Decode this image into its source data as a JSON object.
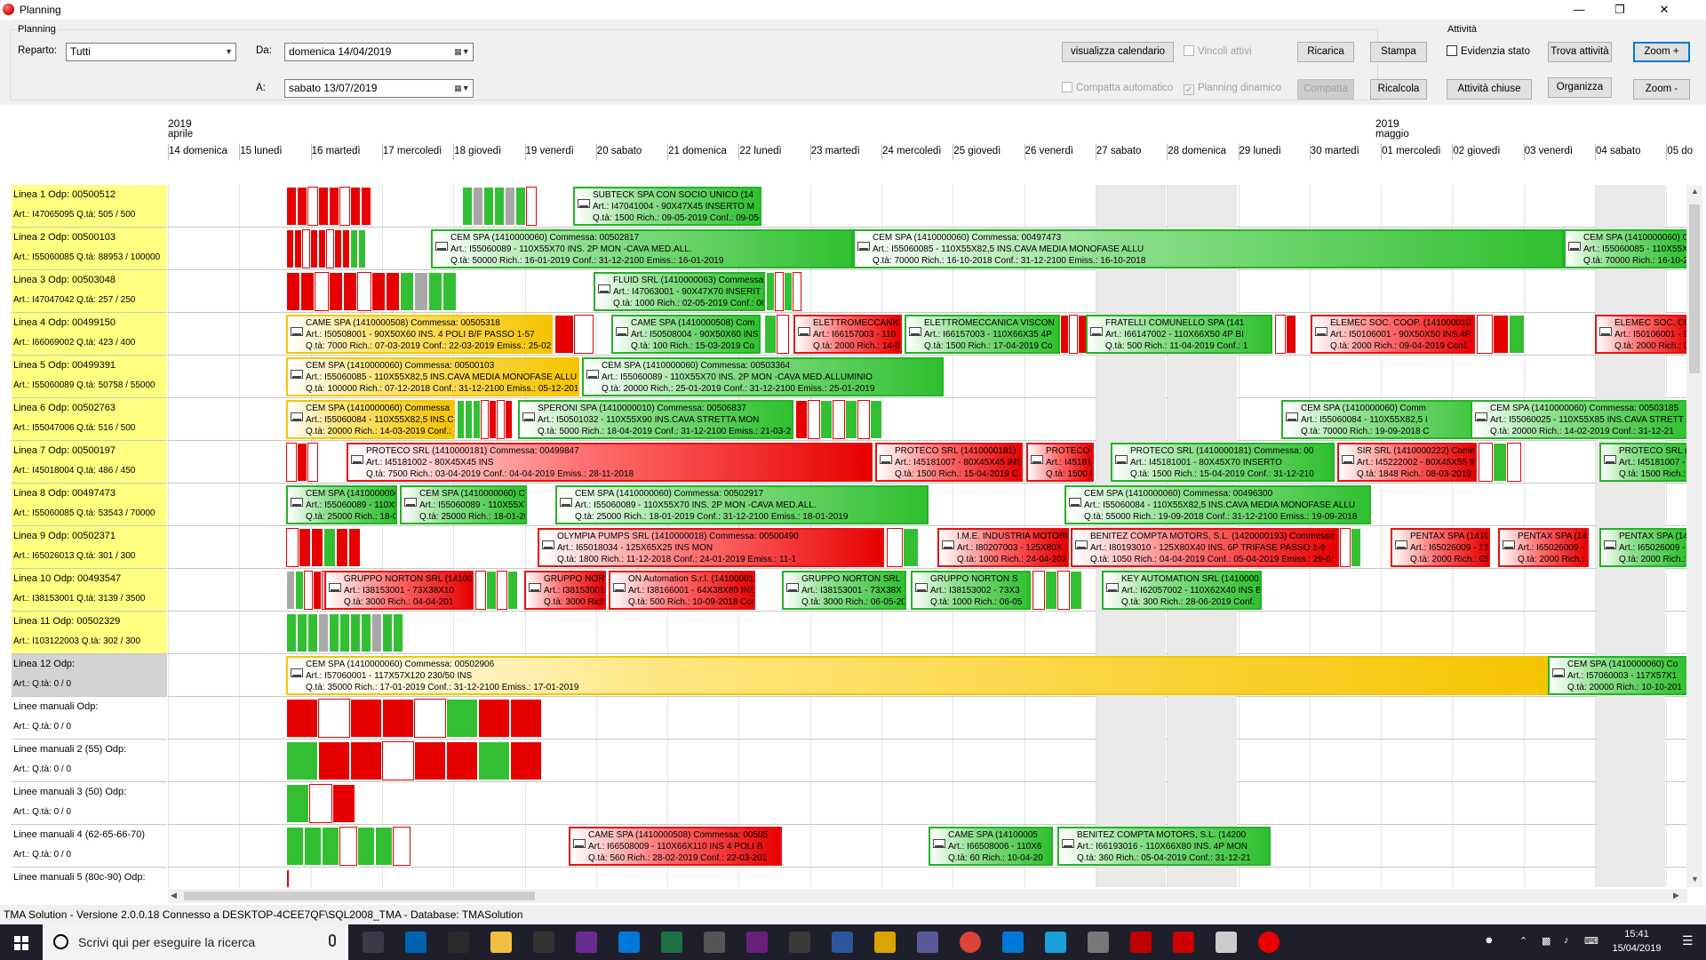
{
  "window": {
    "title": "Planning",
    "min": "—",
    "max": "❐",
    "close": "✕"
  },
  "filters": {
    "group_title": "Planning",
    "reparto_label": "Reparto:",
    "reparto_value": "Tutti",
    "da_label": "Da:",
    "da_value": "domenica 14/04/2019",
    "a_label": "A:",
    "a_value": "sabato    13/07/2019"
  },
  "toolbar": {
    "visualizza_calendario": "visualizza calendario",
    "vincoli_attivi": "Vincoli attivi",
    "compatta_automatico": "Compatta automatico",
    "planning_dinamico": "Planning dinamico",
    "ricarica": "Ricarica",
    "stampa": "Stampa",
    "compatta": "Compatta",
    "ricalcola": "Ricalcola",
    "attivita_title": "Attività",
    "evidenzia_stato": "Evidenzia stato",
    "trova_attivita": "Trova attività",
    "attivita_chiuse": "Attività chiuse",
    "organizza": "Organizza",
    "zoom_plus": "Zoom +",
    "zoom_minus": "Zoom -"
  },
  "timeline": {
    "year_1": "2019",
    "month_1": "aprile",
    "year_2": "2019",
    "month_2": "maggio",
    "days": [
      "14 domenica",
      "15 lunedì",
      "16 martedì",
      "17 mercoledì",
      "18 giovedì",
      "19 venerdì",
      "20 sabato",
      "21 domenica",
      "22 lunedì",
      "23 martedì",
      "24 mercoledì",
      "25 giovedì",
      "26 venerdì",
      "27 sabato",
      "28 domenica",
      "29 lunedì",
      "30 martedì",
      "01 mercoledì",
      "02 giovedì",
      "03 venerdì",
      "04 sabato",
      "05 do"
    ]
  },
  "lines": [
    {
      "name": "Linea 1    Odp: 00500512",
      "info": "Art.: I47065095 Q.tà: 505 / 500"
    },
    {
      "name": "Linea 2    Odp: 00500103",
      "info": "Art.: I55060085 Q.tà: 88953 / 100000"
    },
    {
      "name": "Linea 3    Odp: 00503048",
      "info": "Art.: I47047042 Q.tà: 257 / 250"
    },
    {
      "name": "Linea 4    Odp: 00499150",
      "info": "Art.: I66069002 Q.tà: 423 / 400"
    },
    {
      "name": "Linea 5    Odp: 00499391",
      "info": "Art.: I55060089 Q.tà: 50758 / 55000"
    },
    {
      "name": "Linea 6    Odp: 00502763",
      "info": "Art.: I55047006 Q.tà: 516 / 500"
    },
    {
      "name": "Linea 7    Odp: 00500197",
      "info": "Art.: I45018004 Q.tà: 486 / 450"
    },
    {
      "name": "Linea 8    Odp: 00497473",
      "info": "Art.: I55060085 Q.tà: 53543 / 70000"
    },
    {
      "name": "Linea 9    Odp: 00502371",
      "info": "Art.: I65026013 Q.tà: 301 / 300"
    },
    {
      "name": "Linea 10    Odp: 00493547",
      "info": "Art.: I38153001 Q.tà: 3139 / 3500"
    },
    {
      "name": "Linea 11    Odp: 00502329",
      "info": "Art.: I103122003 Q.tà: 302 / 300"
    },
    {
      "name": "Linea 12    Odp:",
      "info": "Art.:  Q.tà: 0 / 0"
    },
    {
      "name": "Linee manuali    Odp:",
      "info": "Art.:  Q.tà: 0 / 0"
    },
    {
      "name": "Linee manuali 2 (55)    Odp:",
      "info": "Art.:  Q.tà: 0 / 0"
    },
    {
      "name": "Linee manuali 3 (50)    Odp:",
      "info": "Art.:  Q.tà: 0 / 0"
    },
    {
      "name": "Linee manuali 4 (62-65-66-70)",
      "info": "Art.:  Q.tà: 0 / 0"
    },
    {
      "name": "Linee manuali 5 (80c-90)    Odp:",
      "info": ""
    }
  ],
  "jobs": {
    "l1a": "SUBTECK SPA CON SOCIO UNICO  (14",
    "l1b": "Art.: I47041004 - 90X47X45 INSERTO M",
    "l1c": "Q.tà: 1500 Rich.: 09-05-2019 Conf.: 09-05-",
    "l2a": "CEM SPA  (1410000060) Commessa: 00502817",
    "l2b": "Art.: I55060089 - 110X55X70 INS. 2P MON -CAVA MED.ALL.",
    "l2c": "Q.tà: 50000 Rich.: 16-01-2019 Conf.: 31-12-2100 Emiss.: 16-01-2019",
    "l2d": "CEM SPA  (1410000060) Commessa: 00497473",
    "l2e": "Art.: I55060085 - 110X55X82,5 INS.CAVA MEDIA MONOFASE ALLU",
    "l2f": "Q.tà: 70000 Rich.: 16-10-2018 Conf.: 31-12-2100 Emiss.: 16-10-2018",
    "l3a": "FLUID SRL  (1410000063) Commessa",
    "l3b": "Art.: I47063001 - 90X47X70 INSERIT",
    "l3c": "Q.tà: 1000 Rich.: 02-05-2019 Conf.: 06",
    "l4a": "CAME SPA  (1410000508) Commessa: 00505318",
    "l4b": "Art.: I50508001 - 90X50X60 INS. 4 POLI B/F PASSO 1-57",
    "l4c": "Q.tà: 7000 Rich.: 07-03-2019 Conf.: 22-03-2019 Emiss.: 25-02",
    "l4d": "CAME SPA  (1410000508) Com",
    "l4e": "Art.: I50508004 - 90X50X60 INS",
    "l4f": "Q.tà: 100 Rich.: 15-03-2019 Co",
    "l4g": "ELETTROMECCANIC",
    "l4h": "Art.: I66157003 - 110",
    "l4i": "Q.tà: 2000 Rich.: 14-0",
    "l4j": "ELETTROMECCANICA VISCON",
    "l4k": "Art.: I66157003 - 110X66X35 4P",
    "l4l": "Q.tà: 1500 Rich.: 17-04-2019 Co",
    "l4m": "FRATELLI COMUNELLO SPA  (141",
    "l4n": "Art.: I66147002 - 110X66X50 4P BI",
    "l4o": "Q.tà: 500 Rich.: 11-04-2019 Conf.: 1",
    "l4p": "ELEMEC SOC. COOP.  (141000010",
    "l4q": "Art.: I50106001 - 90X50X50 INS.4P",
    "l4r": "Q.tà: 2000 Rich.: 09-04-2019 Conf.",
    "l5a": "CEM SPA  (1410000060) Commessa: 00500103",
    "l5b": "Art.: I55060085 - 110X55X82,5 INS.CAVA MEDIA MONOFASE ALLU",
    "l5c": "Q.tà: 100000 Rich.: 07-12-2018 Conf.: 31-12-2100 Emiss.: 05-12-201",
    "l5d": "CEM SPA  (1410000060) Commessa: 00503364",
    "l5e": "Art.: I55060089 - 110X55X70 INS. 2P MON -CAVA MED.ALLUMINIO",
    "l5f": "Q.tà: 20000 Rich.: 25-01-2019 Conf.: 31-12-2100 Emiss.: 25-01-2019",
    "l6a": "CEM SPA  (1410000060) Commessa",
    "l6b": "Art.: I55060084 - 110X55X82,5 INS.C",
    "l6c": "Q.tà: 20000 Rich.: 14-03-2019 Conf.:",
    "l6d": "SPERONI SPA  (1410000010) Commessa: 00506837",
    "l6e": "Art.: I50501032 - 110X55X90 INS.CAVA STRETTA MON",
    "l6f": "Q.tà: 5000 Rich.: 18-04-2019 Conf.: 31-12-2100 Emiss.: 21-03-2",
    "l6g": "CEM SPA  (1410000060) Comm",
    "l6h": "Art.: I55060084 - 110X55X82,5 I",
    "l6i": "Q.tà: 70000 Rich.: 19-09-2018 C",
    "l6j": "CEM SPA  (1410000060) Commessa: 00503185",
    "l6k": "Art.: I55060025 - 110X55X85 INS.CAVA STRETT",
    "l6l": "Q.tà: 20000 Rich.: 14-02-2019 Conf.: 31-12-21",
    "l7a": "PROTECO SRL  (1410000181) Commessa: 00499847",
    "l7b": "Art.: I45181002 - 80X45X45 INS",
    "l7c": "Q.tà: 7500 Rich.: 03-04-2019 Conf.: 04-04-2019 Emiss.: 28-11-2018",
    "l7d": "PROTECO SRL  (1410000181)",
    "l7e": "Art.: I45181007 - 80X45X45 INS",
    "l7f": "Q.tà: 1500 Rich.: 15-04-2019 C",
    "l7g": "PROTECO SRL  (1410000181) Commessa: 00",
    "l7h": "Art.: I45181001 - 80X45X70 INSERTO",
    "l7i": "Q.tà: 1500 Rich.: 15-04-2019 Conf.: 31-12-210",
    "l7j": "SIR SRL  (1410000222) Commessa",
    "l7k": "Art.: I45222002 - 80X45X55 INS 4P",
    "l7l": "Q.tà: 1848 Rich.: 08-03-2019 Conf.",
    "l8a": "CEM SPA  (1410000060) Commessa: 00502917",
    "l8b": "Art.: I55060089 - 110X55X70 INS. 2P MON -CAVA MED.ALL.",
    "l8c": "Q.tà: 25000 Rich.: 18-01-2019 Conf.: 31-12-2100 Emiss.: 18-01-2019",
    "l8d": "CEM SPA  (1410000060) Commessa: 00496300",
    "l8e": "Art.: I55060084 - 110X55X82,5 INS.CAVA MEDIA MONOFASE ALLU",
    "l8f": "Q.tà: 55000 Rich.: 19-09-2018 Conf.: 31-12-2100 Emiss.: 19-09-2018",
    "l9a": "OLYMPIA PUMPS SRL  (1410000018) Commessa: 00500490",
    "l9b": "Art.: I65018034 - 125X65X25 INS MON",
    "l9c": "Q.tà: 1800 Rich.: 11-12-2018 Conf.: 24-01-2019 Emiss.: 11-1",
    "l9d": "I.M.E. INDUSTRIA MOTORI",
    "l9e": "Art.: I80207003 - 125X80X",
    "l9f": "Q.tà: 1000 Rich.: 24-04-201",
    "l9g": "BENITEZ COMPTA MOTORS, S.L.  (1420000193) Commessa",
    "l9h": "Art.: I80193010 - 125X80X40 INS. 6P TRIFASE PASSO 1-6",
    "l9i": "Q.tà: 1050 Rich.: 04-04-2019 Conf.: 05-04-2019 Emiss.: 29-0",
    "l9j": "PENTAX SPA  (1410000002",
    "l9k": "Art.: I65026009 - 125X65X1",
    "l9l": "Q.tà: 2000 Rich.: 05-04-2019",
    "l10a": "GRUPPO NORTON SRL  (14100",
    "l10b": "Art.: I38153001 - 73X38X10",
    "l10c": "Q.tà: 3000 Rich.: 04-04-201",
    "l10d": "ON Automation S.r.l.  (14100001",
    "l10e": "Art.: I38166001 - 64X38X80 INS",
    "l10f": "Q.tà: 500 Rich.: 10-09-2018 Con",
    "l10g": "GRUPPO NORTON SRL",
    "l10h": "Art.: I38153001 - 73X38X",
    "l10i": "Q.tà: 3000 Rich.: 06-05-20",
    "l10j": "GRUPPO NORTON S",
    "l10k": "Art.: I38153002 - 73X3",
    "l10l": "Q.tà: 1000 Rich.: 06-05",
    "l10m": "KEY AUTOMATION SRL  (1410000",
    "l10n": "Art.: I62057002 - 110X62X40 INS B",
    "l10o": "Q.tà: 300 Rich.: 28-06-2019 Conf.",
    "l12a": "CEM SPA  (1410000060) Commessa: 00502906",
    "l12b": "Art.: I57060001 - 117X57X120 230/50 INS",
    "l12c": "Q.tà: 35000 Rich.: 17-01-2019 Conf.: 31-12-2100 Emiss.: 17-01-2019",
    "l12d": "CEM SPA  (1410000060) Co",
    "l12e": "Art.: I57060003 - 117X57X1",
    "l12f": "Q.tà: 20000 Rich.: 10-10-201",
    "m4a": "CAME SPA  (1410000508) Commessa: 00505",
    "m4b": "Art.: I66508009 - 110X66X110 INS 4 POLI B",
    "m4c": "Q.tà: 560 Rich.: 28-02-2019 Conf.: 22-03-201",
    "m4d": "CAME SPA  (14100005",
    "m4e": "Art.: I66508006 - 110X6",
    "m4f": "Q.tà: 60 Rich.: 10-04-20",
    "m4g": "BENITEZ COMPTA MOTORS, S.L.  (14200",
    "m4h": "Art.: I66193016 - 110X66X80 INS. 4P MON",
    "m4i": "Q.tà: 360 Rich.: 05-04-2019 Conf.: 31-12-21"
  },
  "statusbar": {
    "text": "TMA Solution - Versione 2.0.0.18   Connesso a DESKTOP-4CEE7QF\\SQL2008_TMA - Database: TMASolution"
  },
  "taskbar": {
    "search_placeholder": "Scrivi qui per eseguire la ricerca",
    "time": "15:41",
    "date": "15/04/2019"
  }
}
